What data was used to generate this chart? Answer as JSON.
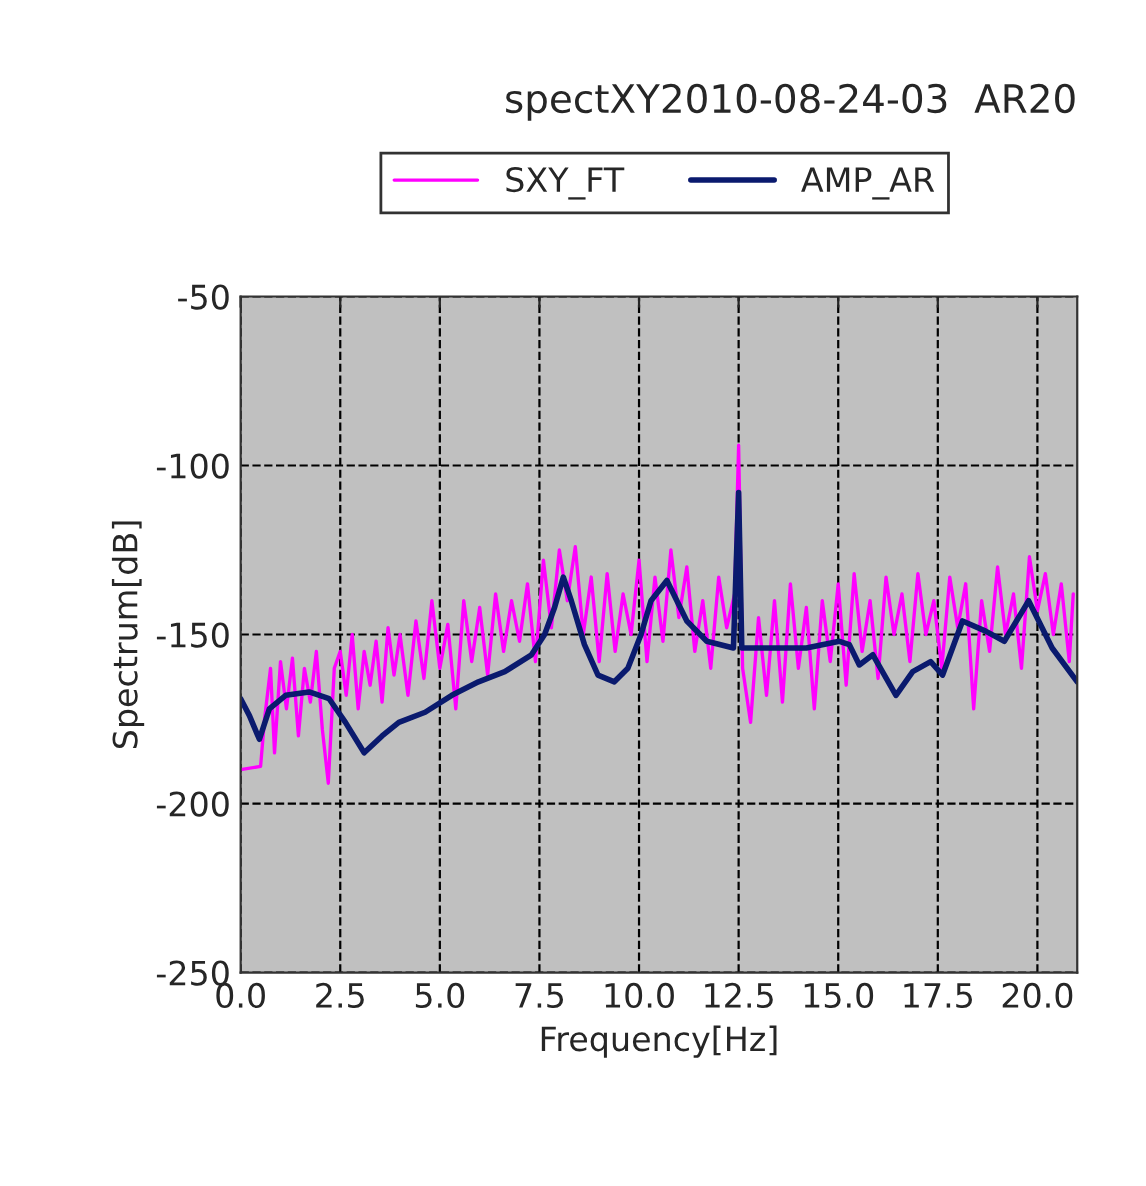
{
  "chart_data": {
    "type": "line",
    "title": "spectXY2010-08-24-03  AR20",
    "xlabel": "Frequency[Hz]",
    "ylabel": "Spectrum[dB]",
    "xlim": [
      0,
      21
    ],
    "ylim": [
      -250,
      -50
    ],
    "xticks": [
      {
        "value": 0,
        "label": "0.0"
      },
      {
        "value": 2.5,
        "label": "2.5"
      },
      {
        "value": 5,
        "label": "5.0"
      },
      {
        "value": 7.5,
        "label": "7.5"
      },
      {
        "value": 10,
        "label": "10.0"
      },
      {
        "value": 12.5,
        "label": "12.5"
      },
      {
        "value": 15,
        "label": "15.0"
      },
      {
        "value": 17.5,
        "label": "17.5"
      },
      {
        "value": 20,
        "label": "20.0"
      }
    ],
    "yticks": [
      -250,
      -200,
      -150,
      -100,
      -50
    ],
    "grid": true,
    "legend": "top",
    "marker": "none",
    "line_style": "solid",
    "series": [
      {
        "name": "SXY_FT",
        "color": "#ff00ff",
        "x": [
          0,
          0.5,
          0.6,
          0.75,
          0.85,
          1.0,
          1.15,
          1.3,
          1.45,
          1.6,
          1.75,
          1.9,
          2.05,
          2.2,
          2.35,
          2.5,
          2.65,
          2.8,
          2.95,
          3.1,
          3.25,
          3.4,
          3.55,
          3.7,
          3.85,
          4.0,
          4.2,
          4.4,
          4.6,
          4.8,
          5.0,
          5.2,
          5.4,
          5.6,
          5.8,
          6.0,
          6.2,
          6.4,
          6.6,
          6.8,
          7.0,
          7.2,
          7.4,
          7.6,
          7.8,
          8.0,
          8.2,
          8.4,
          8.6,
          8.8,
          9.0,
          9.2,
          9.4,
          9.6,
          9.8,
          10.0,
          10.2,
          10.4,
          10.6,
          10.8,
          11.0,
          11.2,
          11.4,
          11.6,
          11.8,
          12.0,
          12.2,
          12.4,
          12.5,
          12.6,
          12.8,
          13.0,
          13.2,
          13.4,
          13.6,
          13.8,
          14.0,
          14.2,
          14.4,
          14.6,
          14.8,
          15.0,
          15.2,
          15.4,
          15.6,
          15.8,
          16.0,
          16.2,
          16.4,
          16.6,
          16.8,
          17.0,
          17.2,
          17.4,
          17.6,
          17.8,
          18.0,
          18.2,
          18.4,
          18.6,
          18.8,
          19.0,
          19.2,
          19.4,
          19.6,
          19.8,
          20.0,
          20.2,
          20.4,
          20.6,
          20.8,
          20.9
        ],
        "values": [
          -190,
          -189,
          -175,
          -160,
          -185,
          -158,
          -172,
          -157,
          -180,
          -160,
          -170,
          -155,
          -178,
          -194,
          -160,
          -155,
          -168,
          -150,
          -172,
          -155,
          -165,
          -152,
          -170,
          -148,
          -162,
          -150,
          -168,
          -146,
          -163,
          -140,
          -160,
          -147,
          -172,
          -140,
          -158,
          -142,
          -162,
          -138,
          -155,
          -140,
          -152,
          -135,
          -158,
          -128,
          -148,
          -125,
          -140,
          -124,
          -150,
          -133,
          -158,
          -132,
          -155,
          -138,
          -150,
          -128,
          -158,
          -133,
          -152,
          -125,
          -145,
          -130,
          -155,
          -140,
          -160,
          -133,
          -148,
          -138,
          -94,
          -160,
          -176,
          -145,
          -168,
          -140,
          -170,
          -135,
          -160,
          -142,
          -172,
          -140,
          -158,
          -135,
          -165,
          -132,
          -155,
          -140,
          -163,
          -133,
          -150,
          -138,
          -158,
          -132,
          -150,
          -140,
          -160,
          -133,
          -148,
          -135,
          -172,
          -140,
          -155,
          -130,
          -150,
          -138,
          -160,
          -127,
          -143,
          -132,
          -150,
          -135,
          -158,
          -138
        ]
      },
      {
        "name": "AMP_AR",
        "color": "#0a1a6e",
        "x": [
          0,
          0.22,
          0.47,
          0.72,
          1.13,
          1.72,
          2.22,
          2.63,
          3.1,
          3.55,
          3.97,
          4.63,
          5.3,
          5.97,
          6.63,
          7.3,
          7.63,
          7.88,
          8.1,
          8.3,
          8.63,
          8.97,
          9.38,
          9.72,
          10.05,
          10.3,
          10.7,
          11.2,
          11.7,
          12.37,
          12.5,
          12.58,
          13.37,
          14.2,
          15.03,
          15.28,
          15.53,
          15.87,
          16.45,
          16.87,
          17.32,
          17.62,
          18.12,
          18.7,
          19.17,
          19.78,
          20.37,
          21.0
        ],
        "values": [
          -169,
          -174,
          -181,
          -172,
          -168,
          -167,
          -169,
          -176,
          -185,
          -180,
          -176,
          -173,
          -168,
          -164,
          -161,
          -156,
          -150,
          -142,
          -133,
          -140,
          -153,
          -162,
          -164,
          -160,
          -150,
          -140,
          -134,
          -146,
          -152,
          -154,
          -108,
          -154,
          -154,
          -154,
          -152,
          -153,
          -159,
          -156,
          -168,
          -161,
          -158,
          -162,
          -146,
          -149,
          -152,
          -140,
          -154,
          -164
        ]
      }
    ]
  }
}
